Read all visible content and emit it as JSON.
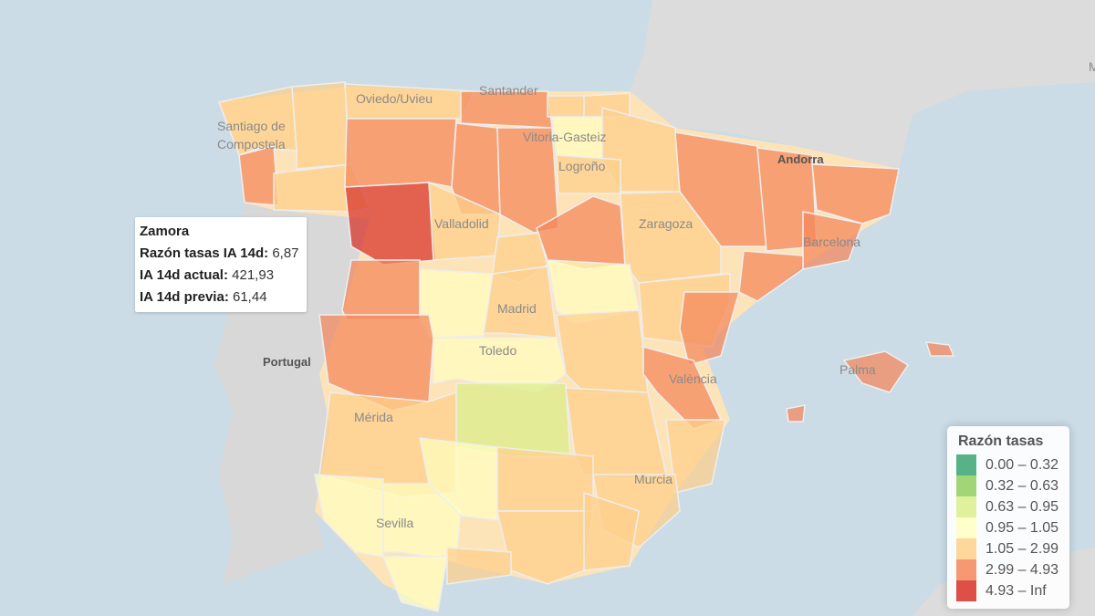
{
  "tooltip": {
    "title": "Zamora",
    "rows": [
      {
        "label": "Razón tasas IA 14d:",
        "value": "6,87"
      },
      {
        "label": "IA 14d actual:",
        "value": "421,93"
      },
      {
        "label": "IA 14d previa:",
        "value": "61,44"
      }
    ]
  },
  "legend": {
    "title": "Razón tasas",
    "items": [
      {
        "label": "0.00 – 0.32",
        "color": "#3aa672"
      },
      {
        "label": "0.32 – 0.63",
        "color": "#91cf60"
      },
      {
        "label": "0.63 – 0.95",
        "color": "#d9ef8b"
      },
      {
        "label": "0.95 – 1.05",
        "color": "#ffffbf"
      },
      {
        "label": "1.05 – 2.99",
        "color": "#fdd08a"
      },
      {
        "label": "2.99 – 4.93",
        "color": "#f4875a"
      },
      {
        "label": "4.93 – Inf",
        "color": "#d73027"
      }
    ]
  },
  "map_labels": [
    {
      "text": "Oviedo/Uvieu"
    },
    {
      "text": "Santander"
    },
    {
      "text": "Santiago de"
    },
    {
      "text": "Compostela"
    },
    {
      "text": "Vitoria-Gasteiz"
    },
    {
      "text": "Logroño"
    },
    {
      "text": "Andorra"
    },
    {
      "text": "Valladolid"
    },
    {
      "text": "Zaragoza"
    },
    {
      "text": "Barcelona"
    },
    {
      "text": "Madrid"
    },
    {
      "text": "Toledo"
    },
    {
      "text": "Portugal"
    },
    {
      "text": "València"
    },
    {
      "text": "Palma"
    },
    {
      "text": "Mérida"
    },
    {
      "text": "Murcia"
    },
    {
      "text": "Sevilla"
    },
    {
      "text": "M"
    }
  ],
  "colors": {
    "sea": "#cbdce6",
    "land": "#dcdcdc",
    "border": "#ffffff"
  }
}
